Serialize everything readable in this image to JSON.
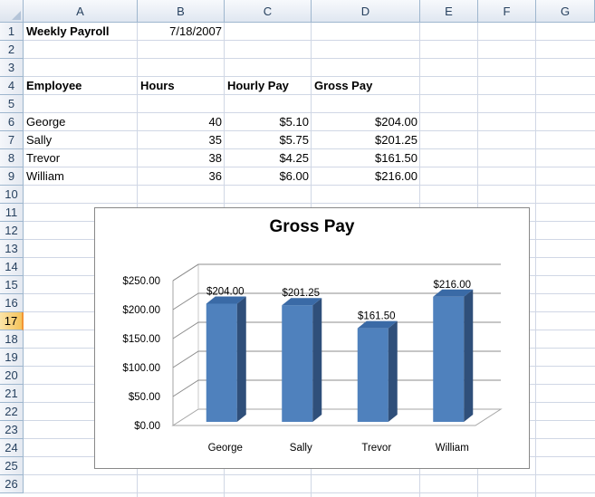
{
  "columns": [
    "A",
    "B",
    "C",
    "D",
    "E",
    "F",
    "G"
  ],
  "rows": [
    "1",
    "2",
    "3",
    "4",
    "5",
    "6",
    "7",
    "8",
    "9",
    "10",
    "11",
    "12",
    "13",
    "14",
    "15",
    "16",
    "17",
    "18",
    "19",
    "20",
    "21",
    "22",
    "23",
    "24",
    "25",
    "26"
  ],
  "active_row": "17",
  "cells": {
    "A1": "Weekly Payroll",
    "B1": "7/18/2007",
    "A4": "Employee",
    "B4": "Hours",
    "C4": "Hourly Pay",
    "D4": "Gross Pay",
    "A6": "George",
    "B6": "40",
    "C6": "$5.10",
    "D6": "$204.00",
    "A7": "Sally",
    "B7": "35",
    "C7": "$5.75",
    "D7": "$201.25",
    "A8": "Trevor",
    "B8": "38",
    "C8": "$4.25",
    "D8": "$161.50",
    "A9": "William",
    "B9": "36",
    "C9": "$6.00",
    "D9": "$216.00"
  },
  "chart_data": {
    "type": "bar",
    "title": "Gross Pay",
    "categories": [
      "George",
      "Sally",
      "Trevor",
      "William"
    ],
    "values": [
      204.0,
      201.25,
      161.5,
      216.0
    ],
    "data_labels": [
      "$204.00",
      "$201.25",
      "$161.50",
      "$216.00"
    ],
    "y_ticks": [
      "$0.00",
      "$50.00",
      "$100.00",
      "$150.00",
      "$200.00",
      "$250.00"
    ],
    "ylim": [
      0,
      250
    ],
    "grid": true,
    "style": "3d-column",
    "bar_color": "#4f81bd",
    "bar_side_color": "#2f4f7a",
    "bar_top_color": "#3a6aa6"
  }
}
